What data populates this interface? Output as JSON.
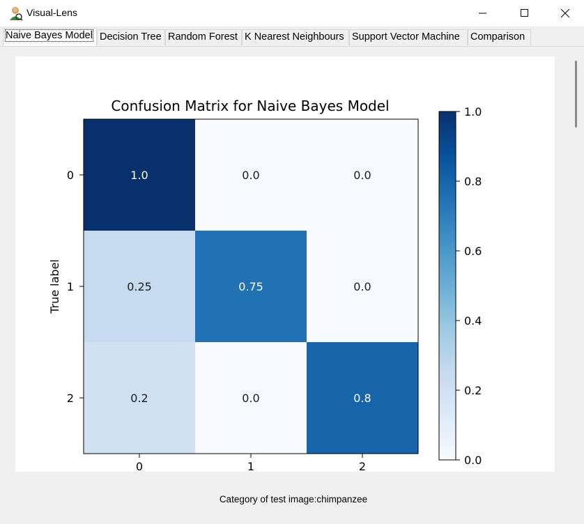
{
  "window": {
    "title": "Visual-Lens",
    "icon": "visual-lens-app-icon"
  },
  "tabs": [
    {
      "label": "Naive Bayes Model",
      "active": true
    },
    {
      "label": "Decision Tree",
      "active": false
    },
    {
      "label": "Random Forest",
      "active": false
    },
    {
      "label": "K Nearest Neighbours",
      "active": false
    },
    {
      "label": "Support Vector Machine",
      "active": false
    },
    {
      "label": "Comparison",
      "active": false
    }
  ],
  "footer": {
    "caption": "Category of test image:chimpanzee"
  },
  "chart_data": {
    "type": "heatmap",
    "title": "Confusion Matrix for Naive Bayes Model",
    "ylabel": "True label",
    "xlabel": "",
    "x_ticks": [
      "0",
      "1",
      "2"
    ],
    "y_ticks": [
      "0",
      "1",
      "2"
    ],
    "matrix": [
      [
        1.0,
        0.0,
        0.0
      ],
      [
        0.25,
        0.75,
        0.0
      ],
      [
        0.2,
        0.0,
        0.8
      ]
    ],
    "cell_labels": [
      [
        "1.0",
        "0.0",
        "0.0"
      ],
      [
        "0.25",
        "0.75",
        "0.0"
      ],
      [
        "0.2",
        "0.0",
        "0.8"
      ]
    ],
    "colormap": "Blues",
    "colorbar": {
      "range": [
        0.0,
        1.0
      ],
      "ticks": [
        "0.0",
        "0.2",
        "0.4",
        "0.6",
        "0.8",
        "1.0"
      ]
    },
    "grid": false
  }
}
